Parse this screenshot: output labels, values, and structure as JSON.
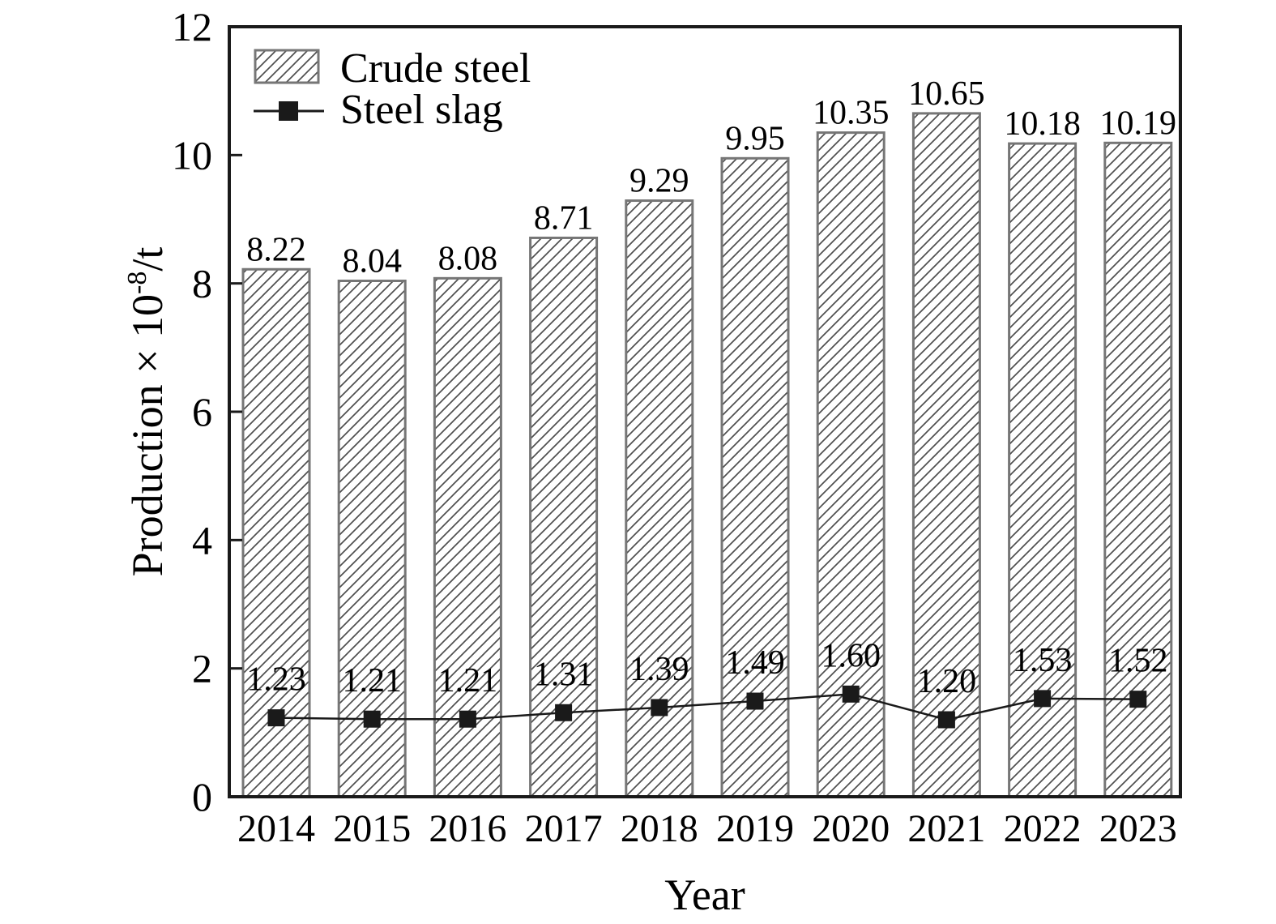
{
  "chart_data": {
    "type": "bar",
    "title": "",
    "categories": [
      "2014",
      "2015",
      "2016",
      "2017",
      "2018",
      "2019",
      "2020",
      "2021",
      "2022",
      "2023"
    ],
    "series": [
      {
        "name": "Crude steel",
        "kind": "bar",
        "values": [
          8.22,
          8.04,
          8.08,
          8.71,
          9.29,
          9.95,
          10.35,
          10.65,
          10.18,
          10.19
        ],
        "labels": [
          "8.22",
          "8.04",
          "8.08",
          "8.71",
          "9.29",
          "9.95",
          "10.35",
          "10.65",
          "10.18",
          "10.19"
        ]
      },
      {
        "name": "Steel slag",
        "kind": "line",
        "values": [
          1.23,
          1.21,
          1.21,
          1.31,
          1.39,
          1.49,
          1.6,
          1.2,
          1.53,
          1.52
        ],
        "labels": [
          "1.23",
          "1.21",
          "1.21",
          "1.31",
          "1.39",
          "1.49",
          "1.60",
          "1.20",
          "1.53",
          "1.52"
        ]
      }
    ],
    "xlabel": "Year",
    "ylabel": {
      "text": "Production × 10⁻⁸/t",
      "base": "Production × 10",
      "superscript": "-8",
      "suffix": "/t"
    },
    "ylim": [
      0,
      12
    ],
    "yticks": [
      "0",
      "2",
      "4",
      "6",
      "8",
      "10",
      "12"
    ],
    "grid": false,
    "legend": {
      "position": "top-left",
      "entries": [
        "Crude steel",
        "Steel slag"
      ]
    },
    "colors": {
      "background": "#ffffff",
      "axis": "#1a1a1a",
      "text": "#000000",
      "hatch_line": "#4f4f4f",
      "bar_border": "#767676",
      "series_line": "#1a1a1a",
      "marker": "#1a1a1a"
    }
  }
}
